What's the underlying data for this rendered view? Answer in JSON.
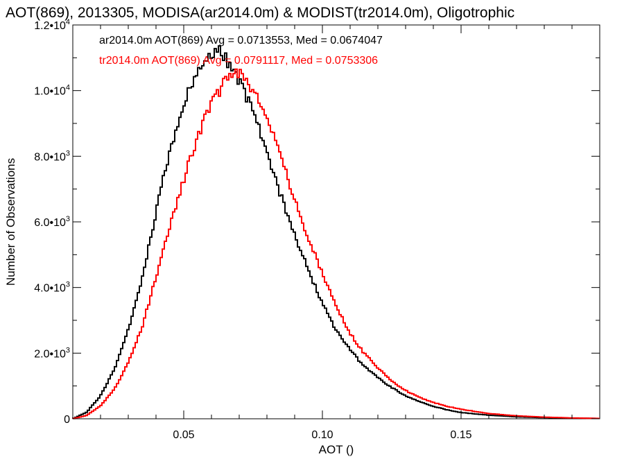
{
  "chart_data": {
    "type": "line",
    "title": "AOT(869), 2013305, MODISA(ar2014.0m) & MODIST(tr2014.0m), Oligotrophic",
    "xlabel": "AOT ()",
    "ylabel": "Number of Observations",
    "xlim": [
      0.01,
      0.2
    ],
    "ylim": [
      0,
      12000
    ],
    "x_ticks": [
      {
        "value": 0.05,
        "label": "0.05"
      },
      {
        "value": 0.1,
        "label": "0.10"
      },
      {
        "value": 0.15,
        "label": "0.15"
      }
    ],
    "y_ticks": [
      {
        "value": 0,
        "mantissa": "0",
        "exp": ""
      },
      {
        "value": 2000,
        "mantissa": "2.0•10",
        "exp": "3"
      },
      {
        "value": 4000,
        "mantissa": "4.0•10",
        "exp": "3"
      },
      {
        "value": 6000,
        "mantissa": "6.0•10",
        "exp": "3"
      },
      {
        "value": 8000,
        "mantissa": "8.0•10",
        "exp": "3"
      },
      {
        "value": 10000,
        "mantissa": "1.0•10",
        "exp": "4"
      },
      {
        "value": 12000,
        "mantissa": "1.2•10",
        "exp": "4"
      }
    ],
    "grid": false,
    "legend_position": "top-left",
    "series": [
      {
        "name": "ar2014.0m",
        "legend": "ar2014.0m AOT(869) Avg = 0.0713553, Med = 0.0674047",
        "color": "#000000",
        "x": [
          0.01,
          0.015,
          0.02,
          0.025,
          0.03,
          0.035,
          0.04,
          0.045,
          0.05,
          0.055,
          0.06,
          0.063,
          0.065,
          0.068,
          0.07,
          0.075,
          0.08,
          0.085,
          0.09,
          0.095,
          0.1,
          0.105,
          0.11,
          0.115,
          0.12,
          0.125,
          0.13,
          0.135,
          0.14,
          0.145,
          0.15,
          0.16,
          0.17,
          0.18,
          0.19,
          0.2
        ],
        "y": [
          0,
          200,
          700,
          1500,
          2700,
          4300,
          6300,
          8200,
          9600,
          10600,
          11100,
          11200,
          11000,
          10600,
          10300,
          9400,
          8100,
          6800,
          5600,
          4500,
          3500,
          2700,
          2100,
          1600,
          1250,
          950,
          700,
          520,
          380,
          270,
          190,
          110,
          60,
          35,
          20,
          10
        ]
      },
      {
        "name": "tr2014.0m",
        "legend": "tr2014.0m AOT(869) Avg = 0.0791117, Med = 0.0753306",
        "color": "#ff0000",
        "x": [
          0.01,
          0.015,
          0.02,
          0.025,
          0.03,
          0.035,
          0.04,
          0.045,
          0.05,
          0.055,
          0.06,
          0.063,
          0.065,
          0.068,
          0.07,
          0.075,
          0.08,
          0.085,
          0.09,
          0.095,
          0.1,
          0.105,
          0.11,
          0.115,
          0.12,
          0.125,
          0.13,
          0.135,
          0.14,
          0.145,
          0.15,
          0.16,
          0.17,
          0.18,
          0.19,
          0.2
        ],
        "y": [
          0,
          100,
          400,
          900,
          1700,
          2800,
          4300,
          5900,
          7300,
          8600,
          9600,
          10000,
          10300,
          10500,
          10500,
          10000,
          9200,
          8000,
          6700,
          5500,
          4400,
          3400,
          2600,
          2000,
          1550,
          1150,
          860,
          650,
          500,
          380,
          290,
          160,
          90,
          50,
          25,
          10
        ]
      }
    ]
  }
}
